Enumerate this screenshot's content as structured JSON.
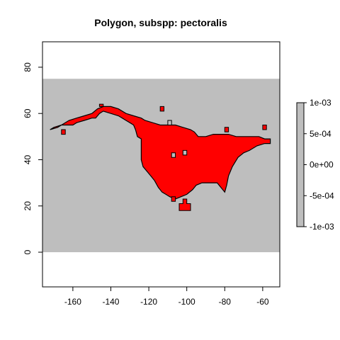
{
  "chart_data": {
    "type": "heatmap",
    "title": "Polygon, subspp: pectoralis",
    "xlabel": "",
    "ylabel": "",
    "xlim": [
      -176,
      -51
    ],
    "ylim": [
      -15,
      91
    ],
    "x_ticks": [
      -160,
      -140,
      -120,
      -100,
      -80,
      -60
    ],
    "y_ticks": [
      0,
      20,
      40,
      60,
      80
    ],
    "raster_extent": {
      "xmin": -176,
      "xmax": -51,
      "ymin": 0,
      "ymax": 75
    },
    "raster_fill": "#bebebe",
    "grid": false,
    "polygon_fill": "#ff0000",
    "polygon_stroke": "#000000",
    "polygon_outline": [
      [
        -172,
        53
      ],
      [
        -168,
        54
      ],
      [
        -166,
        55
      ],
      [
        -160,
        55
      ],
      [
        -158,
        56
      ],
      [
        -154,
        57
      ],
      [
        -150,
        58
      ],
      [
        -148,
        58
      ],
      [
        -146,
        60
      ],
      [
        -144,
        61
      ],
      [
        -140,
        60
      ],
      [
        -136,
        59
      ],
      [
        -134,
        58
      ],
      [
        -132,
        57
      ],
      [
        -130,
        56
      ],
      [
        -128,
        55
      ],
      [
        -127,
        53
      ],
      [
        -126,
        50
      ],
      [
        -124,
        49
      ],
      [
        -124,
        44
      ],
      [
        -124,
        40
      ],
      [
        -123,
        37
      ],
      [
        -121,
        35
      ],
      [
        -119,
        33
      ],
      [
        -117,
        31
      ],
      [
        -115,
        28
      ],
      [
        -113,
        26
      ],
      [
        -111,
        25
      ],
      [
        -109,
        24
      ],
      [
        -106,
        23
      ],
      [
        -103,
        24
      ],
      [
        -100,
        25
      ],
      [
        -97,
        27
      ],
      [
        -95,
        29
      ],
      [
        -92,
        30
      ],
      [
        -88,
        30
      ],
      [
        -84,
        30
      ],
      [
        -82,
        28
      ],
      [
        -80,
        26
      ],
      [
        -79,
        29
      ],
      [
        -78,
        33
      ],
      [
        -76,
        37
      ],
      [
        -73,
        41
      ],
      [
        -70,
        43
      ],
      [
        -67,
        44
      ],
      [
        -63,
        46
      ],
      [
        -59,
        47
      ],
      [
        -56,
        47
      ],
      [
        -56,
        49
      ],
      [
        -59,
        49
      ],
      [
        -62,
        50
      ],
      [
        -66,
        50
      ],
      [
        -70,
        50
      ],
      [
        -74,
        50
      ],
      [
        -78,
        51
      ],
      [
        -82,
        51
      ],
      [
        -86,
        51
      ],
      [
        -90,
        50
      ],
      [
        -94,
        50
      ],
      [
        -96,
        52
      ],
      [
        -98,
        53
      ],
      [
        -102,
        54
      ],
      [
        -106,
        55
      ],
      [
        -110,
        55
      ],
      [
        -114,
        55
      ],
      [
        -118,
        56
      ],
      [
        -122,
        57
      ],
      [
        -124,
        58
      ],
      [
        -128,
        59
      ],
      [
        -132,
        60
      ],
      [
        -136,
        62
      ],
      [
        -140,
        63
      ],
      [
        -144,
        63
      ],
      [
        -147,
        62
      ],
      [
        -150,
        60
      ],
      [
        -154,
        59
      ],
      [
        -158,
        58
      ],
      [
        -162,
        57
      ],
      [
        -166,
        55
      ],
      [
        -170,
        54
      ],
      [
        -172,
        53
      ]
    ],
    "polygon_islands": [
      [
        [
          -146,
          63
        ],
        [
          -144,
          63
        ],
        [
          -144,
          64
        ],
        [
          -146,
          64
        ]
      ],
      [
        [
          -166,
          51
        ],
        [
          -164,
          51
        ],
        [
          -164,
          53
        ],
        [
          -166,
          53
        ]
      ],
      [
        [
          -114,
          61
        ],
        [
          -112,
          61
        ],
        [
          -112,
          63
        ],
        [
          -114,
          63
        ]
      ],
      [
        [
          -80,
          52
        ],
        [
          -78,
          52
        ],
        [
          -78,
          54
        ],
        [
          -80,
          54
        ]
      ],
      [
        [
          -60,
          53
        ],
        [
          -58,
          53
        ],
        [
          -58,
          55
        ],
        [
          -60,
          55
        ]
      ],
      [
        [
          -104,
          18
        ],
        [
          -98,
          18
        ],
        [
          -98,
          21
        ],
        [
          -100,
          21
        ],
        [
          -100,
          23
        ],
        [
          -102,
          23
        ],
        [
          -102,
          21
        ],
        [
          -104,
          21
        ]
      ],
      [
        [
          -108,
          22
        ],
        [
          -106,
          22
        ],
        [
          -106,
          24
        ],
        [
          -108,
          24
        ]
      ]
    ],
    "polygon_holes": [
      [
        [
          -108,
          41
        ],
        [
          -106,
          41
        ],
        [
          -106,
          43
        ],
        [
          -108,
          43
        ]
      ],
      [
        [
          -102,
          42
        ],
        [
          -100,
          42
        ],
        [
          -100,
          44
        ],
        [
          -102,
          44
        ]
      ],
      [
        [
          -110,
          55
        ],
        [
          -108,
          55
        ],
        [
          -108,
          57
        ],
        [
          -110,
          57
        ]
      ]
    ],
    "legend": {
      "placement": "right",
      "labels": [
        "1e-03",
        "5e-04",
        "0e+00",
        "-5e-04",
        "-1e-03"
      ],
      "values": [
        0.001,
        0.0005,
        0,
        -0.0005,
        -0.001
      ],
      "fill": "#bebebe"
    }
  }
}
